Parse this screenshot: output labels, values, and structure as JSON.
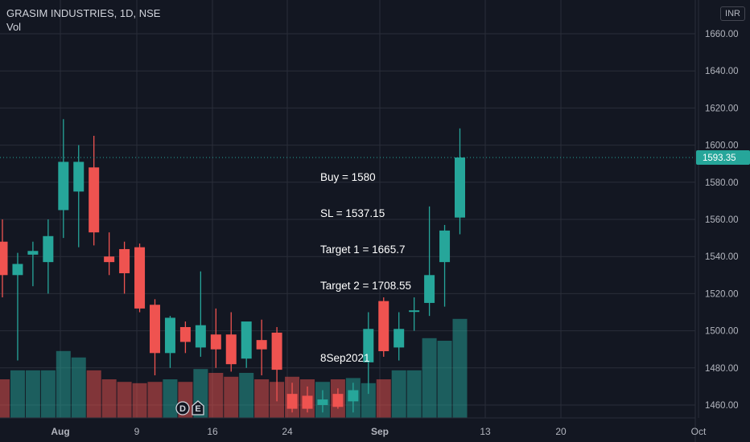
{
  "header": {
    "title": "GRASIM INDUSTRIES, 1D, NSE",
    "volume_label": "Vol",
    "currency": "INR"
  },
  "annotation": {
    "lines": [
      "Buy = 1580",
      "SL = 1537.15",
      "Target 1 = 1665.7",
      "Target 2 = 1708.55",
      "",
      "8Sep2021"
    ]
  },
  "colors": {
    "up": "#26a69a",
    "down": "#ef5350",
    "background": "#131722",
    "grid": "#2a2e39",
    "price_line": "#26a69a"
  },
  "event_markers": [
    "D",
    "E"
  ],
  "chart_data": {
    "type": "candlestick",
    "title": "GRASIM INDUSTRIES, 1D, NSE",
    "ylim": [
      1450,
      1670
    ],
    "y_ticks": [
      "1460.00",
      "1480.00",
      "1500.00",
      "1520.00",
      "1540.00",
      "1560.00",
      "1580.00",
      "1600.00",
      "1620.00",
      "1640.00",
      "1660.00"
    ],
    "x_ticks": [
      "Aug",
      "9",
      "16",
      "24",
      "Sep",
      "13",
      "20",
      "Oct"
    ],
    "last_price": "1593.35",
    "candles": [
      {
        "o": 1548,
        "h": 1560,
        "l": 1518,
        "c": 1530
      },
      {
        "o": 1530,
        "h": 1542,
        "l": 1484,
        "c": 1536
      },
      {
        "o": 1541,
        "h": 1548,
        "l": 1524,
        "c": 1543
      },
      {
        "o": 1537,
        "h": 1560,
        "l": 1520,
        "c": 1551
      },
      {
        "o": 1565,
        "h": 1614,
        "l": 1550,
        "c": 1591
      },
      {
        "o": 1575,
        "h": 1600,
        "l": 1545,
        "c": 1591
      },
      {
        "o": 1588,
        "h": 1605,
        "l": 1546,
        "c": 1553
      },
      {
        "o": 1540,
        "h": 1553,
        "l": 1530,
        "c": 1537
      },
      {
        "o": 1544,
        "h": 1548,
        "l": 1520,
        "c": 1531
      },
      {
        "o": 1545,
        "h": 1547,
        "l": 1510,
        "c": 1512
      },
      {
        "o": 1514,
        "h": 1517,
        "l": 1476,
        "c": 1488
      },
      {
        "o": 1488,
        "h": 1508,
        "l": 1480,
        "c": 1507
      },
      {
        "o": 1502,
        "h": 1505,
        "l": 1488,
        "c": 1494
      },
      {
        "o": 1491,
        "h": 1532,
        "l": 1486,
        "c": 1503
      },
      {
        "o": 1498,
        "h": 1512,
        "l": 1480,
        "c": 1490
      },
      {
        "o": 1498,
        "h": 1510,
        "l": 1478,
        "c": 1482
      },
      {
        "o": 1485,
        "h": 1504,
        "l": 1480,
        "c": 1505
      },
      {
        "o": 1495,
        "h": 1506,
        "l": 1476,
        "c": 1490
      },
      {
        "o": 1499,
        "h": 1502,
        "l": 1462,
        "c": 1479
      },
      {
        "o": 1466,
        "h": 1472,
        "l": 1456,
        "c": 1458
      },
      {
        "o": 1465,
        "h": 1470,
        "l": 1456,
        "c": 1458
      },
      {
        "o": 1460,
        "h": 1468,
        "l": 1456,
        "c": 1463
      },
      {
        "o": 1466,
        "h": 1469,
        "l": 1458,
        "c": 1459
      },
      {
        "o": 1462,
        "h": 1472,
        "l": 1456,
        "c": 1468
      },
      {
        "o": 1483,
        "h": 1510,
        "l": 1466,
        "c": 1501
      },
      {
        "o": 1516,
        "h": 1518,
        "l": 1486,
        "c": 1489
      },
      {
        "o": 1491,
        "h": 1510,
        "l": 1484,
        "c": 1501
      },
      {
        "o": 1511,
        "h": 1518,
        "l": 1500,
        "c": 1511
      },
      {
        "o": 1515,
        "h": 1567,
        "l": 1508,
        "c": 1530
      },
      {
        "o": 1537,
        "h": 1557,
        "l": 1513,
        "c": 1554
      },
      {
        "o": 1561,
        "h": 1609,
        "l": 1552,
        "c": 1593.35
      }
    ],
    "volume": [
      0.3,
      0.37,
      0.37,
      0.37,
      0.52,
      0.47,
      0.37,
      0.3,
      0.28,
      0.27,
      0.28,
      0.3,
      0.28,
      0.38,
      0.35,
      0.32,
      0.35,
      0.3,
      0.28,
      0.32,
      0.3,
      0.28,
      0.3,
      0.31,
      0.27,
      0.3,
      0.37,
      0.37,
      0.62,
      0.6,
      0.77
    ]
  }
}
